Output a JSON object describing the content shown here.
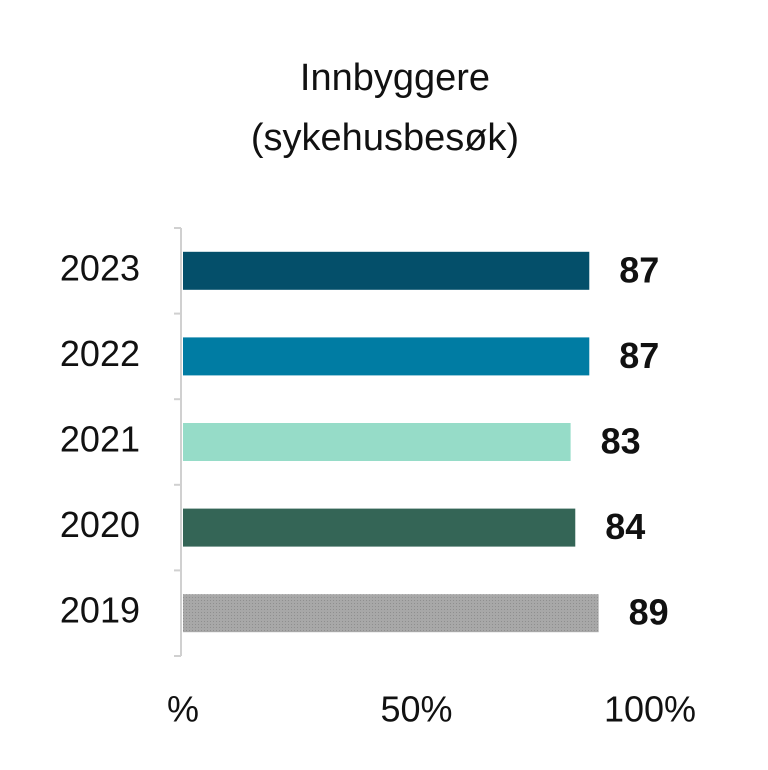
{
  "chart_data": {
    "type": "hbar",
    "title": "Innbyggere",
    "subtitle": "(sykehusbesøk)",
    "categories": [
      "2023",
      "2022",
      "2021",
      "2020",
      "2019"
    ],
    "values": [
      87,
      87,
      83,
      84,
      89
    ],
    "colors": [
      "#044f6a",
      "#007ca3",
      "#96dcc8",
      "#346556",
      "#a6a6a6"
    ],
    "xlim": [
      0,
      100
    ],
    "xticks": [
      {
        "value": 0,
        "label": "%"
      },
      {
        "value": 50,
        "label": "50%"
      },
      {
        "value": 100,
        "label": "100%"
      }
    ]
  }
}
